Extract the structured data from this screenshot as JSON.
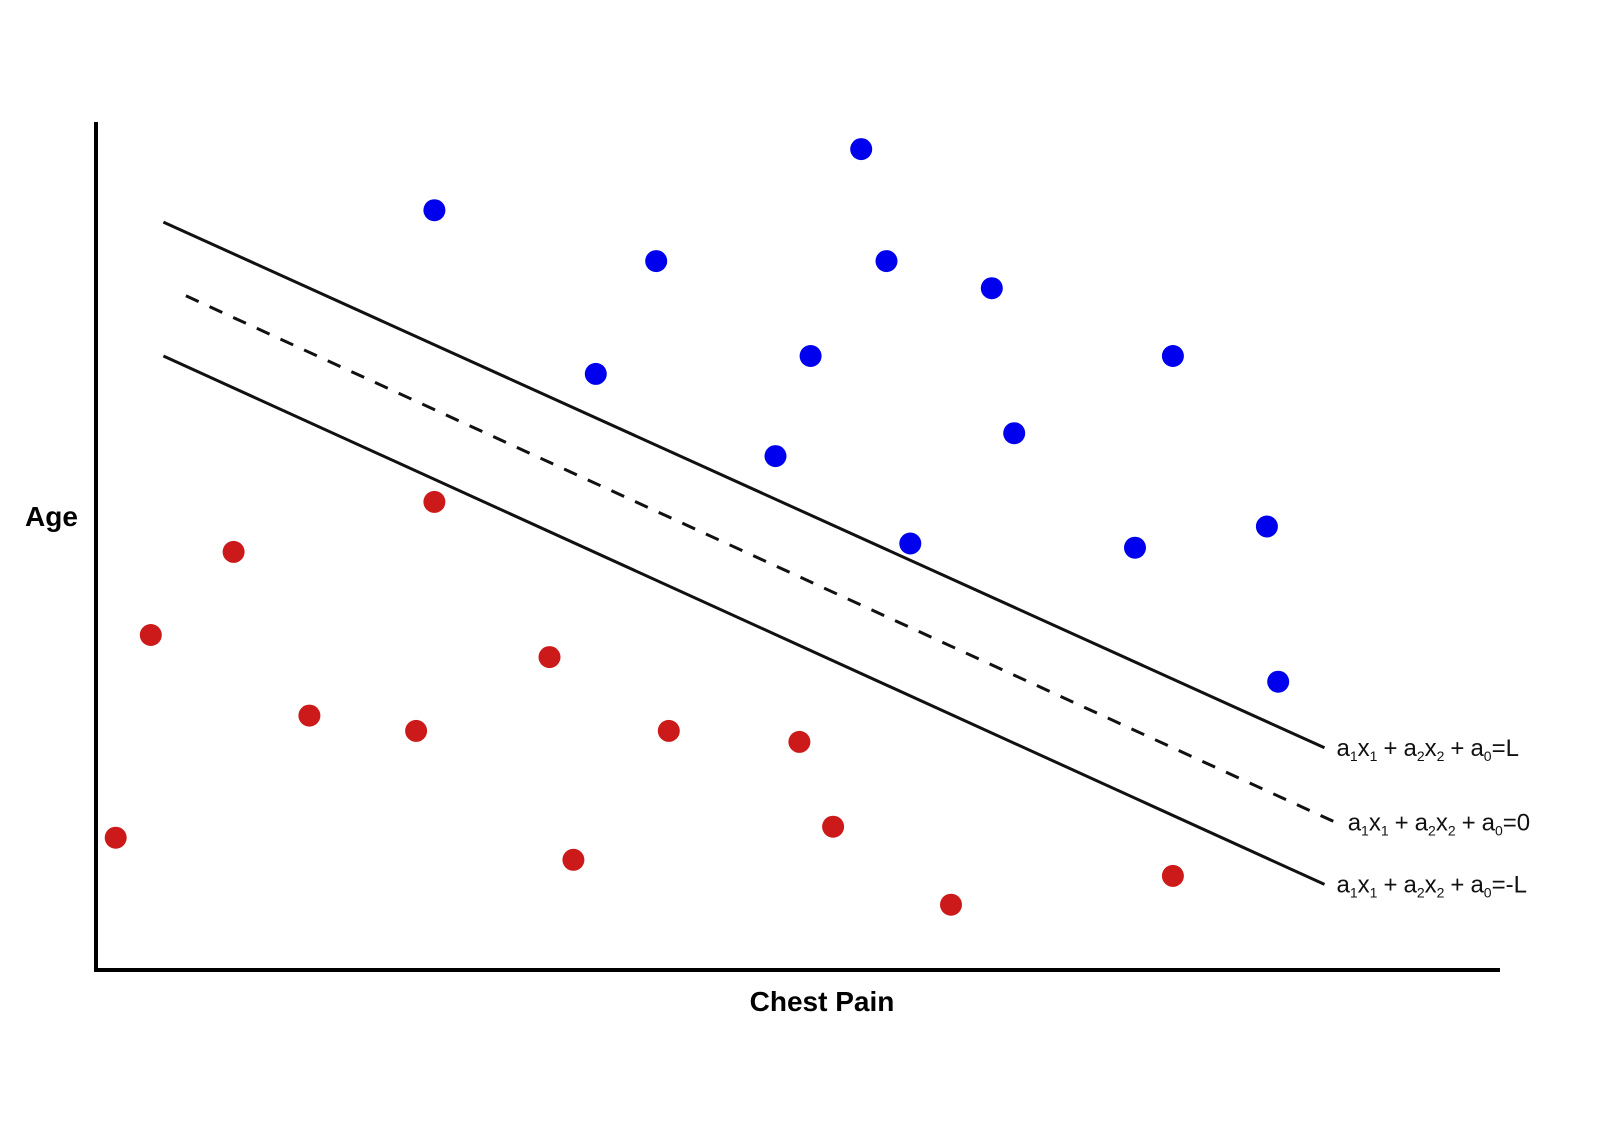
{
  "chart_data": {
    "type": "scatter",
    "xlabel": "Chest Pain",
    "ylabel": "Age",
    "xlim": [
      0,
      100
    ],
    "ylim": [
      0,
      100
    ],
    "grid": false,
    "colors": {
      "class_a": "#0000ee",
      "class_b": "#cc1a1a",
      "axis": "#000000",
      "line": "#111111"
    },
    "series": [
      {
        "color": "#0000ee",
        "points": [
          {
            "x": 24.1,
            "y": 89.6
          },
          {
            "x": 54.5,
            "y": 96.8
          },
          {
            "x": 39.9,
            "y": 83.6
          },
          {
            "x": 56.3,
            "y": 83.6
          },
          {
            "x": 63.8,
            "y": 80.4
          },
          {
            "x": 35.6,
            "y": 70.3
          },
          {
            "x": 50.9,
            "y": 72.4
          },
          {
            "x": 76.7,
            "y": 72.4
          },
          {
            "x": 48.4,
            "y": 60.6
          },
          {
            "x": 65.4,
            "y": 63.3
          },
          {
            "x": 58.0,
            "y": 50.3
          },
          {
            "x": 74.0,
            "y": 49.8
          },
          {
            "x": 83.4,
            "y": 52.3
          },
          {
            "x": 84.2,
            "y": 34.0
          }
        ]
      },
      {
        "color": "#cc1a1a",
        "points": [
          {
            "x": 24.1,
            "y": 55.2
          },
          {
            "x": 9.8,
            "y": 49.3
          },
          {
            "x": 3.9,
            "y": 39.5
          },
          {
            "x": 32.3,
            "y": 36.9
          },
          {
            "x": 15.2,
            "y": 30.0
          },
          {
            "x": 22.8,
            "y": 28.2
          },
          {
            "x": 40.8,
            "y": 28.2
          },
          {
            "x": 50.1,
            "y": 26.9
          },
          {
            "x": 1.4,
            "y": 15.6
          },
          {
            "x": 34.0,
            "y": 13.0
          },
          {
            "x": 52.5,
            "y": 16.9
          },
          {
            "x": 60.9,
            "y": 7.7
          },
          {
            "x": 76.7,
            "y": 11.1
          }
        ]
      }
    ],
    "lines": [
      {
        "style": "solid",
        "x": [
          4.8,
          87.5
        ],
        "y": [
          88.2,
          26.2
        ],
        "label": {
          "a1": "a",
          "s1": "1",
          "x1": "x",
          "t1": "1",
          "p1": "+",
          "a2": "a",
          "s2": "2",
          "x2": "x",
          "t2": "2",
          "p2": "+",
          "a0": "a",
          "s0": "0",
          "rhs": "=L"
        }
      },
      {
        "style": "dashed",
        "x": [
          6.4,
          88.3
        ],
        "y": [
          79.5,
          17.4
        ],
        "label": {
          "a1": "a",
          "s1": "1",
          "x1": "x",
          "t1": "1",
          "p1": "+",
          "a2": "a",
          "s2": "2",
          "x2": "x",
          "t2": "2",
          "p2": "+",
          "a0": "a",
          "s0": "0",
          "rhs": "=0"
        }
      },
      {
        "style": "solid",
        "x": [
          4.8,
          87.5
        ],
        "y": [
          72.4,
          10.1
        ],
        "label": {
          "a1": "a",
          "s1": "1",
          "x1": "x",
          "t1": "1",
          "p1": "+",
          "a2": "a",
          "s2": "2",
          "x2": "x",
          "t2": "2",
          "p2": "+",
          "a0": "a",
          "s0": "0",
          "rhs": "=-L"
        }
      }
    ]
  }
}
